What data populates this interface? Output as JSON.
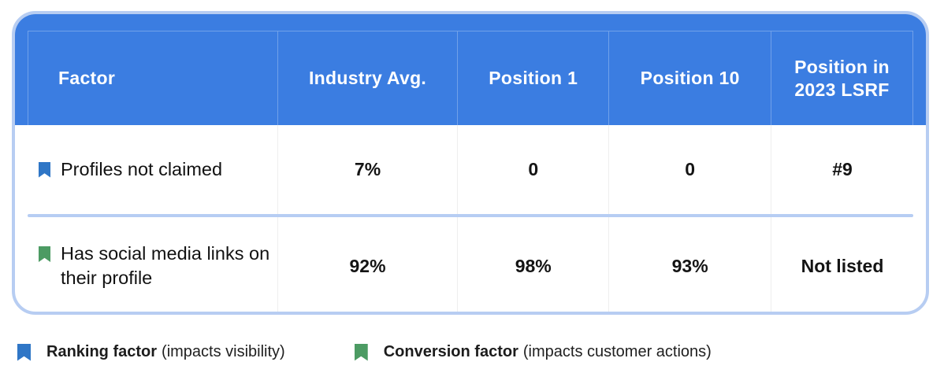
{
  "chart_data": {
    "type": "table",
    "columns": [
      "Factor",
      "Industry Avg.",
      "Position 1",
      "Position 10",
      "Position in 2023 LSRF"
    ],
    "rows": [
      [
        "Profiles not claimed",
        "7%",
        "0",
        "0",
        "#9"
      ],
      [
        "Has social media links on their profile",
        "92%",
        "98%",
        "93%",
        "Not listed"
      ]
    ],
    "row_factor_types": [
      "ranking",
      "conversion"
    ],
    "legend": [
      "Ranking factor (impacts visibility)",
      "Conversion factor (impacts customer actions)"
    ]
  },
  "table": {
    "columns": [
      {
        "label": "Factor"
      },
      {
        "label": "Industry Avg."
      },
      {
        "label": "Position 1"
      },
      {
        "label": "Position 10"
      },
      {
        "label": "Position in 2023 LSRF"
      }
    ],
    "rows": [
      {
        "factor": "Profiles not claimed",
        "factor_type": "ranking",
        "values": [
          "7%",
          "0",
          "0",
          "#9"
        ]
      },
      {
        "factor": "Has social media links on their profile",
        "factor_type": "conversion",
        "values": [
          "92%",
          "98%",
          "93%",
          "Not listed"
        ]
      }
    ]
  },
  "legend": [
    {
      "label": "Ranking factor",
      "description": "(impacts visibility)",
      "type": "ranking"
    },
    {
      "label": "Conversion factor",
      "description": "(impacts customer actions)",
      "type": "conversion"
    }
  ],
  "colors": {
    "header_background": "#3b7de1",
    "card_border": "#b7cdf2",
    "row_divider": "#b6cdf3",
    "ranking_icon": "#2f76c6",
    "conversion_icon": "#4c9b63",
    "header_text": "#ffffff",
    "body_text": "#141414"
  }
}
